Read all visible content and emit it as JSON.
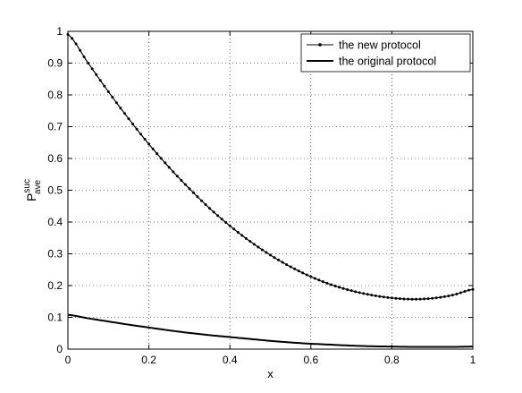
{
  "chart_data": {
    "type": "line",
    "title": "",
    "xlabel": "x",
    "ylabel": {
      "base": "P",
      "sup": "suc",
      "sub": "ave"
    },
    "xlim": [
      0,
      1
    ],
    "ylim": [
      0,
      1
    ],
    "xticks": [
      0,
      0.2,
      0.4,
      0.6,
      0.8,
      1
    ],
    "yticks": [
      0,
      0.1,
      0.2,
      0.3,
      0.4,
      0.5,
      0.6,
      0.7,
      0.8,
      0.9,
      1
    ],
    "xtick_labels": [
      "0",
      "0.2",
      "0.4",
      "0.6",
      "0.8",
      "1"
    ],
    "ytick_labels": [
      "0",
      "0.1",
      "0.2",
      "0.3",
      "0.4",
      "0.5",
      "0.6",
      "0.7",
      "0.8",
      "0.9",
      "1"
    ],
    "grid": true,
    "grid_style": "dotted",
    "legend_position": "top-right",
    "x": [
      0,
      0.05,
      0.1,
      0.15,
      0.2,
      0.25,
      0.3,
      0.35,
      0.4,
      0.45,
      0.5,
      0.55,
      0.6,
      0.65,
      0.7,
      0.75,
      0.8,
      0.85,
      0.9,
      0.95,
      1.0
    ],
    "series": [
      {
        "name": "the new protocol",
        "marker": "dot",
        "color": "#000000",
        "values": [
          0.99,
          0.9,
          0.81,
          0.725,
          0.645,
          0.572,
          0.505,
          0.443,
          0.388,
          0.339,
          0.296,
          0.259,
          0.228,
          0.203,
          0.184,
          0.17,
          0.161,
          0.157,
          0.16,
          0.17,
          0.188
        ]
      },
      {
        "name": "the original protocol",
        "marker": "none",
        "color": "#000000",
        "values": [
          0.108,
          0.097,
          0.087,
          0.077,
          0.068,
          0.059,
          0.051,
          0.044,
          0.038,
          0.032,
          0.026,
          0.021,
          0.017,
          0.014,
          0.011,
          0.009,
          0.008,
          0.007,
          0.007,
          0.007,
          0.008
        ]
      }
    ]
  }
}
